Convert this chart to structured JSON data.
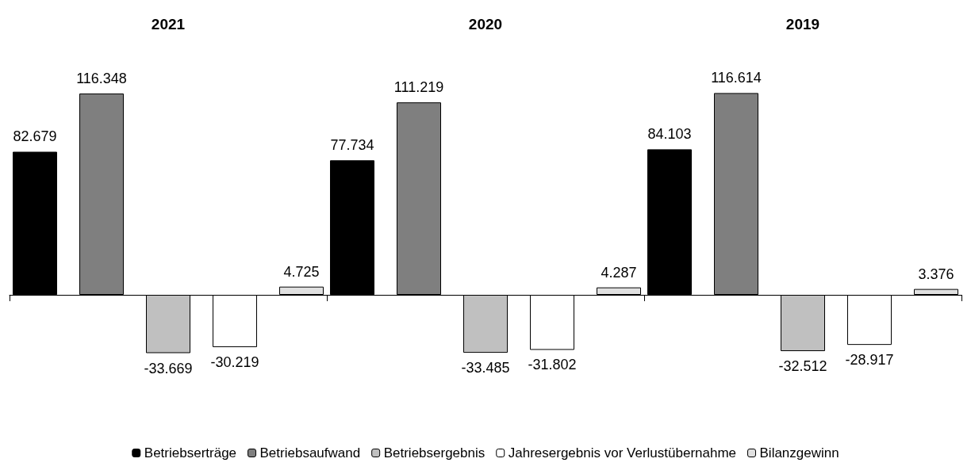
{
  "chart_data": {
    "type": "bar",
    "categories": [
      "2021",
      "2020",
      "2019"
    ],
    "series": [
      {
        "name": "Betriebserträge",
        "color": "#000000",
        "values": [
          82.679,
          77.734,
          84.103
        ]
      },
      {
        "name": "Betriebsaufwand",
        "color": "#7f7f7f",
        "values": [
          116.348,
          111.219,
          116.614
        ]
      },
      {
        "name": "Betriebsergebnis",
        "color": "#c0c0c0",
        "values": [
          -33.669,
          -33.485,
          -32.512
        ]
      },
      {
        "name": "Jahresergebnis vor Verlustübernahme",
        "color": "#ffffff",
        "values": [
          -30.219,
          -31.802,
          -28.917
        ]
      },
      {
        "name": "Bilanzgewinn",
        "color": "#e0e0e0",
        "values": [
          4.725,
          4.287,
          3.376
        ]
      }
    ],
    "data_labels": true,
    "legend": "bottom"
  }
}
